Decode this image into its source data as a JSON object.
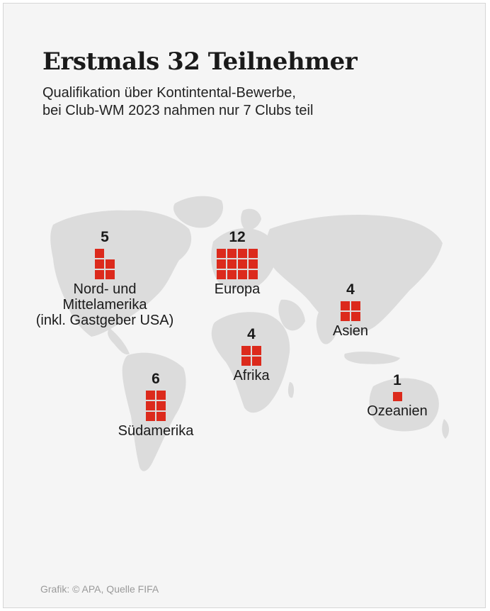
{
  "title": "Erstmals 32 Teilnehmer",
  "subtitle": {
    "line1": "Qualifikation über Kontintental-Bewerbe,",
    "line2": "bei Club-WM 2023 nahmen nur 7 Clubs teil"
  },
  "regions": [
    {
      "key": "nordamerika",
      "count": "5",
      "lines": [
        "Nord- und",
        "Mittelamerika",
        "(inkl. Gastgeber USA)"
      ]
    },
    {
      "key": "europa",
      "count": "12",
      "lines": [
        "Europa"
      ]
    },
    {
      "key": "asien",
      "count": "4",
      "lines": [
        "Asien"
      ]
    },
    {
      "key": "afrika",
      "count": "4",
      "lines": [
        "Afrika"
      ]
    },
    {
      "key": "suedamerika",
      "count": "6",
      "lines": [
        "Südamerika"
      ]
    },
    {
      "key": "ozeanien",
      "count": "1",
      "lines": [
        "Ozeanien"
      ]
    }
  ],
  "colors": {
    "square": "#dc2a1c",
    "land": "#dcdcdc",
    "background": "#f5f5f5"
  },
  "footer": "Grafik: © APA, Quelle FIFA"
}
